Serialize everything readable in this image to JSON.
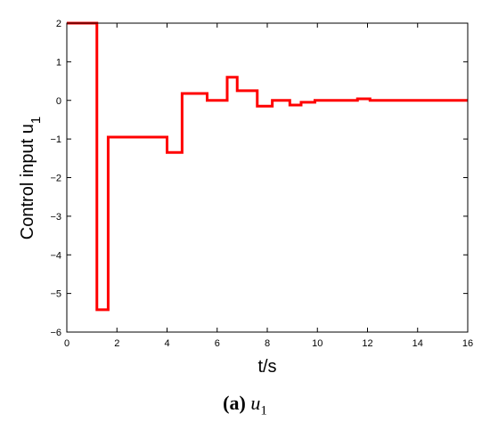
{
  "chart_data": {
    "type": "line",
    "step": true,
    "xlabel": "t/s",
    "ylabel": "Control input u",
    "ylabel_subscript": "1",
    "xlim": [
      0,
      16
    ],
    "ylim": [
      -6,
      2
    ],
    "xticks": [
      0,
      2,
      4,
      6,
      8,
      10,
      12,
      14,
      16
    ],
    "yticks": [
      -6,
      -5,
      -4,
      -3,
      -2,
      -1,
      0,
      1,
      2
    ],
    "grid": false,
    "legend": "none",
    "series": [
      {
        "color": "#ff0000",
        "points": [
          [
            0,
            2
          ],
          [
            1.2,
            2
          ],
          [
            1.2,
            1
          ],
          [
            1.2,
            -5.42
          ],
          [
            1.65,
            -5.42
          ],
          [
            1.65,
            -0.95
          ],
          [
            4.0,
            -0.95
          ],
          [
            4.0,
            -1.35
          ],
          [
            4.6,
            -1.35
          ],
          [
            4.6,
            0.18
          ],
          [
            5.6,
            0.18
          ],
          [
            5.6,
            0.0
          ],
          [
            6.4,
            0.0
          ],
          [
            6.4,
            0.6
          ],
          [
            6.8,
            0.6
          ],
          [
            6.8,
            0.25
          ],
          [
            7.6,
            0.25
          ],
          [
            7.6,
            -0.15
          ],
          [
            8.2,
            -0.15
          ],
          [
            8.2,
            0.0
          ],
          [
            8.9,
            0.0
          ],
          [
            8.9,
            -0.12
          ],
          [
            9.35,
            -0.12
          ],
          [
            9.35,
            -0.05
          ],
          [
            9.9,
            -0.05
          ],
          [
            9.9,
            0.0
          ],
          [
            11.6,
            0.0
          ],
          [
            11.6,
            0.04
          ],
          [
            12.1,
            0.04
          ],
          [
            12.1,
            0.0
          ],
          [
            16,
            0.0
          ]
        ]
      }
    ]
  },
  "caption": {
    "label": "(a)",
    "symbol": "u",
    "subscript": "1"
  }
}
